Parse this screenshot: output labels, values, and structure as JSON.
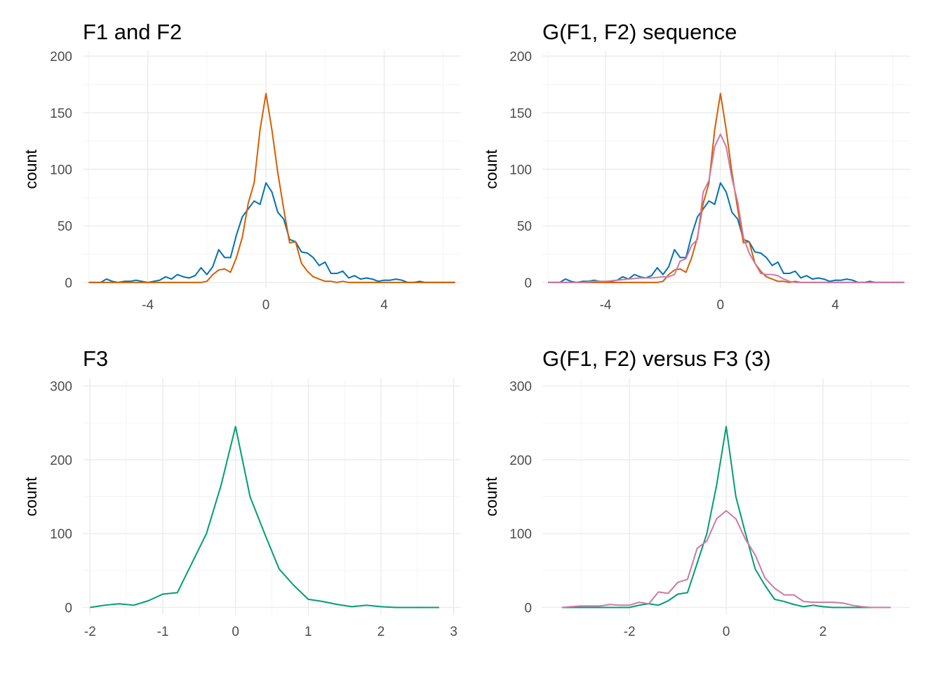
{
  "chart_data": [
    {
      "type": "line",
      "title": "F1 and F2",
      "xlabel": "",
      "ylabel": "count",
      "xlim": [
        -6.2,
        6.6
      ],
      "ylim": [
        -5,
        205
      ],
      "x_ticks": [
        -4,
        0,
        4
      ],
      "y_ticks": [
        0,
        50,
        100,
        150,
        200
      ],
      "grid": true,
      "legend": "none",
      "series": [
        {
          "color": "#0072B2",
          "x": [
            -6.0,
            -5.8,
            -5.6,
            -5.4,
            -5.2,
            -5.0,
            -4.8,
            -4.6,
            -4.4,
            -4.2,
            -4.0,
            -3.8,
            -3.6,
            -3.4,
            -3.2,
            -3.0,
            -2.8,
            -2.6,
            -2.4,
            -2.2,
            -2.0,
            -1.8,
            -1.6,
            -1.4,
            -1.2,
            -1.0,
            -0.8,
            -0.6,
            -0.4,
            -0.2,
            0.0,
            0.2,
            0.4,
            0.6,
            0.8,
            1.0,
            1.2,
            1.4,
            1.6,
            1.8,
            2.0,
            2.2,
            2.4,
            2.6,
            2.8,
            3.0,
            3.2,
            3.4,
            3.6,
            3.8,
            4.0,
            4.2,
            4.4,
            4.6,
            4.8,
            5.0,
            5.2,
            5.4,
            5.6,
            5.8,
            6.0,
            6.2,
            6.4
          ],
          "y": [
            0,
            0,
            0,
            3,
            1,
            0,
            1,
            1,
            2,
            1,
            0,
            1,
            2,
            5,
            3,
            7,
            5,
            4,
            6,
            13,
            7,
            14,
            29,
            22,
            22,
            42,
            58,
            65,
            72,
            69,
            88,
            80,
            62,
            56,
            38,
            36,
            27,
            26,
            22,
            15,
            18,
            8,
            8,
            10,
            4,
            6,
            3,
            4,
            3,
            1,
            2,
            2,
            3,
            2,
            0,
            0,
            1,
            0,
            0,
            0,
            0,
            0,
            0
          ]
        },
        {
          "color": "#D55E00",
          "x": [
            -6.0,
            -5.8,
            -5.6,
            -5.4,
            -5.2,
            -5.0,
            -4.8,
            -4.6,
            -4.4,
            -4.2,
            -4.0,
            -3.8,
            -3.6,
            -3.4,
            -3.2,
            -3.0,
            -2.8,
            -2.6,
            -2.4,
            -2.2,
            -2.0,
            -1.8,
            -1.6,
            -1.4,
            -1.2,
            -1.0,
            -0.8,
            -0.6,
            -0.4,
            -0.2,
            0.0,
            0.2,
            0.4,
            0.6,
            0.8,
            1.0,
            1.2,
            1.4,
            1.6,
            1.8,
            2.0,
            2.2,
            2.4,
            2.6,
            2.8,
            3.0,
            3.2,
            3.4,
            3.6,
            3.8,
            4.0,
            4.2,
            4.4,
            4.6,
            4.8,
            5.0,
            5.2,
            5.4,
            5.6,
            5.8,
            6.0,
            6.2,
            6.4
          ],
          "y": [
            0,
            0,
            0,
            0,
            0,
            0,
            0,
            0,
            0,
            0,
            0,
            0,
            0,
            0,
            0,
            0,
            0,
            0,
            0,
            0,
            1,
            7,
            11,
            12,
            9,
            22,
            40,
            70,
            88,
            135,
            167,
            135,
            97,
            65,
            35,
            36,
            17,
            10,
            5,
            3,
            1,
            1,
            0,
            1,
            0,
            0,
            0,
            0,
            0,
            0,
            0,
            0,
            0,
            0,
            0,
            0,
            0,
            0,
            0,
            0,
            0,
            0,
            0
          ]
        }
      ]
    },
    {
      "type": "line",
      "title": "G(F1, F2) sequence",
      "xlabel": "",
      "ylabel": "count",
      "xlim": [
        -6.2,
        6.6
      ],
      "ylim": [
        -5,
        205
      ],
      "x_ticks": [
        -4,
        0,
        4
      ],
      "y_ticks": [
        0,
        50,
        100,
        150,
        200
      ],
      "grid": true,
      "legend": "none",
      "series": [
        {
          "color": "#0072B2",
          "x": [
            -6.0,
            -5.8,
            -5.6,
            -5.4,
            -5.2,
            -5.0,
            -4.8,
            -4.6,
            -4.4,
            -4.2,
            -4.0,
            -3.8,
            -3.6,
            -3.4,
            -3.2,
            -3.0,
            -2.8,
            -2.6,
            -2.4,
            -2.2,
            -2.0,
            -1.8,
            -1.6,
            -1.4,
            -1.2,
            -1.0,
            -0.8,
            -0.6,
            -0.4,
            -0.2,
            0.0,
            0.2,
            0.4,
            0.6,
            0.8,
            1.0,
            1.2,
            1.4,
            1.6,
            1.8,
            2.0,
            2.2,
            2.4,
            2.6,
            2.8,
            3.0,
            3.2,
            3.4,
            3.6,
            3.8,
            4.0,
            4.2,
            4.4,
            4.6,
            4.8,
            5.0,
            5.2,
            5.4,
            5.6,
            5.8,
            6.0,
            6.2,
            6.4
          ],
          "y": [
            0,
            0,
            0,
            3,
            1,
            0,
            1,
            1,
            2,
            1,
            0,
            1,
            2,
            5,
            3,
            7,
            5,
            4,
            6,
            13,
            7,
            14,
            29,
            22,
            22,
            42,
            58,
            65,
            72,
            69,
            88,
            80,
            62,
            56,
            38,
            36,
            27,
            26,
            22,
            15,
            18,
            8,
            8,
            10,
            4,
            6,
            3,
            4,
            3,
            1,
            2,
            2,
            3,
            2,
            0,
            0,
            1,
            0,
            0,
            0,
            0,
            0,
            0
          ]
        },
        {
          "color": "#D55E00",
          "x": [
            -6.0,
            -5.8,
            -5.6,
            -5.4,
            -5.2,
            -5.0,
            -4.8,
            -4.6,
            -4.4,
            -4.2,
            -4.0,
            -3.8,
            -3.6,
            -3.4,
            -3.2,
            -3.0,
            -2.8,
            -2.6,
            -2.4,
            -2.2,
            -2.0,
            -1.8,
            -1.6,
            -1.4,
            -1.2,
            -1.0,
            -0.8,
            -0.6,
            -0.4,
            -0.2,
            0.0,
            0.2,
            0.4,
            0.6,
            0.8,
            1.0,
            1.2,
            1.4,
            1.6,
            1.8,
            2.0,
            2.2,
            2.4,
            2.6,
            2.8,
            3.0,
            3.2,
            3.4,
            3.6,
            3.8,
            4.0,
            4.2,
            4.4,
            4.6,
            4.8,
            5.0,
            5.2,
            5.4,
            5.6,
            5.8,
            6.0,
            6.2,
            6.4
          ],
          "y": [
            0,
            0,
            0,
            0,
            0,
            0,
            0,
            0,
            0,
            0,
            0,
            0,
            0,
            0,
            0,
            0,
            0,
            0,
            0,
            0,
            1,
            7,
            11,
            12,
            9,
            22,
            40,
            70,
            88,
            135,
            167,
            135,
            97,
            65,
            35,
            36,
            17,
            10,
            5,
            3,
            1,
            1,
            0,
            1,
            0,
            0,
            0,
            0,
            0,
            0,
            0,
            0,
            0,
            0,
            0,
            0,
            0,
            0,
            0,
            0,
            0,
            0,
            0
          ]
        },
        {
          "color": "#CC79A7",
          "x": [
            -6.0,
            -5.6,
            -5.2,
            -4.8,
            -4.4,
            -4.0,
            -3.6,
            -3.2,
            -2.8,
            -2.4,
            -2.0,
            -1.8,
            -1.6,
            -1.4,
            -1.2,
            -1.0,
            -0.8,
            -0.6,
            -0.4,
            -0.2,
            0.0,
            0.2,
            0.4,
            0.6,
            0.8,
            1.0,
            1.2,
            1.4,
            1.6,
            1.8,
            2.0,
            2.2,
            2.4,
            2.6,
            2.8,
            3.2,
            3.6,
            4.0,
            4.4,
            4.8,
            5.2,
            5.6,
            6.0,
            6.4
          ],
          "y": [
            0,
            0,
            0,
            0,
            1,
            1,
            2,
            3,
            4,
            4,
            5,
            5,
            7,
            19,
            21,
            33,
            38,
            80,
            90,
            120,
            131,
            120,
            92,
            71,
            40,
            26,
            17,
            8,
            7,
            7,
            6,
            3,
            1,
            0,
            0,
            0,
            0,
            0,
            0,
            0,
            0,
            0,
            0,
            0
          ]
        }
      ]
    },
    {
      "type": "line",
      "title": "F3",
      "xlabel": "",
      "ylabel": "count",
      "xlim": [
        -2.1,
        3.1
      ],
      "ylim": [
        -10,
        310
      ],
      "x_ticks": [
        -2,
        -1,
        0,
        1,
        2,
        3
      ],
      "y_ticks": [
        0,
        100,
        200,
        300
      ],
      "grid": true,
      "legend": "none",
      "series": [
        {
          "color": "#009E73",
          "x": [
            -2.0,
            -1.8,
            -1.6,
            -1.4,
            -1.2,
            -1.0,
            -0.8,
            -0.6,
            -0.4,
            -0.2,
            0.0,
            0.2,
            0.4,
            0.6,
            0.8,
            1.0,
            1.2,
            1.4,
            1.6,
            1.8,
            2.0,
            2.2,
            2.4,
            2.6,
            2.8
          ],
          "y": [
            0,
            3,
            5,
            3,
            9,
            18,
            20,
            60,
            100,
            165,
            245,
            150,
            100,
            52,
            30,
            11,
            8,
            4,
            1,
            3,
            1,
            0,
            0,
            0,
            0
          ]
        }
      ]
    },
    {
      "type": "line",
      "title": "G(F1, F2) versus F3 (3)",
      "xlabel": "",
      "ylabel": "count",
      "xlim": [
        -3.8,
        3.8
      ],
      "ylim": [
        -10,
        310
      ],
      "x_ticks": [
        -2,
        0,
        2
      ],
      "y_ticks": [
        0,
        100,
        200,
        300
      ],
      "grid": true,
      "legend": "none",
      "series": [
        {
          "color": "#009E73",
          "x": [
            -3.4,
            -3.2,
            -3.0,
            -2.8,
            -2.6,
            -2.4,
            -2.2,
            -2.0,
            -1.8,
            -1.6,
            -1.4,
            -1.2,
            -1.0,
            -0.8,
            -0.6,
            -0.4,
            -0.2,
            0.0,
            0.2,
            0.4,
            0.6,
            0.8,
            1.0,
            1.2,
            1.4,
            1.6,
            1.8,
            2.0,
            2.2,
            2.4,
            2.6,
            2.8,
            3.0,
            3.2,
            3.4
          ],
          "y": [
            0,
            0,
            0,
            0,
            0,
            0,
            0,
            0,
            3,
            5,
            3,
            9,
            18,
            20,
            60,
            100,
            165,
            245,
            150,
            100,
            52,
            30,
            11,
            8,
            4,
            1,
            3,
            1,
            0,
            0,
            0,
            0,
            0,
            0,
            0
          ]
        },
        {
          "color": "#CC79A7",
          "x": [
            -3.4,
            -3.2,
            -3.0,
            -2.8,
            -2.6,
            -2.4,
            -2.2,
            -2.0,
            -1.8,
            -1.6,
            -1.4,
            -1.2,
            -1.0,
            -0.8,
            -0.6,
            -0.4,
            -0.2,
            0.0,
            0.2,
            0.4,
            0.6,
            0.8,
            1.0,
            1.2,
            1.4,
            1.6,
            1.8,
            2.0,
            2.2,
            2.4,
            2.6,
            2.8,
            3.0,
            3.2,
            3.4
          ],
          "y": [
            0,
            1,
            2,
            2,
            2,
            4,
            3,
            3,
            7,
            5,
            21,
            19,
            34,
            38,
            80,
            90,
            120,
            131,
            120,
            92,
            71,
            40,
            26,
            17,
            17,
            8,
            7,
            7,
            7,
            6,
            3,
            1,
            0,
            0,
            0
          ]
        }
      ]
    }
  ]
}
